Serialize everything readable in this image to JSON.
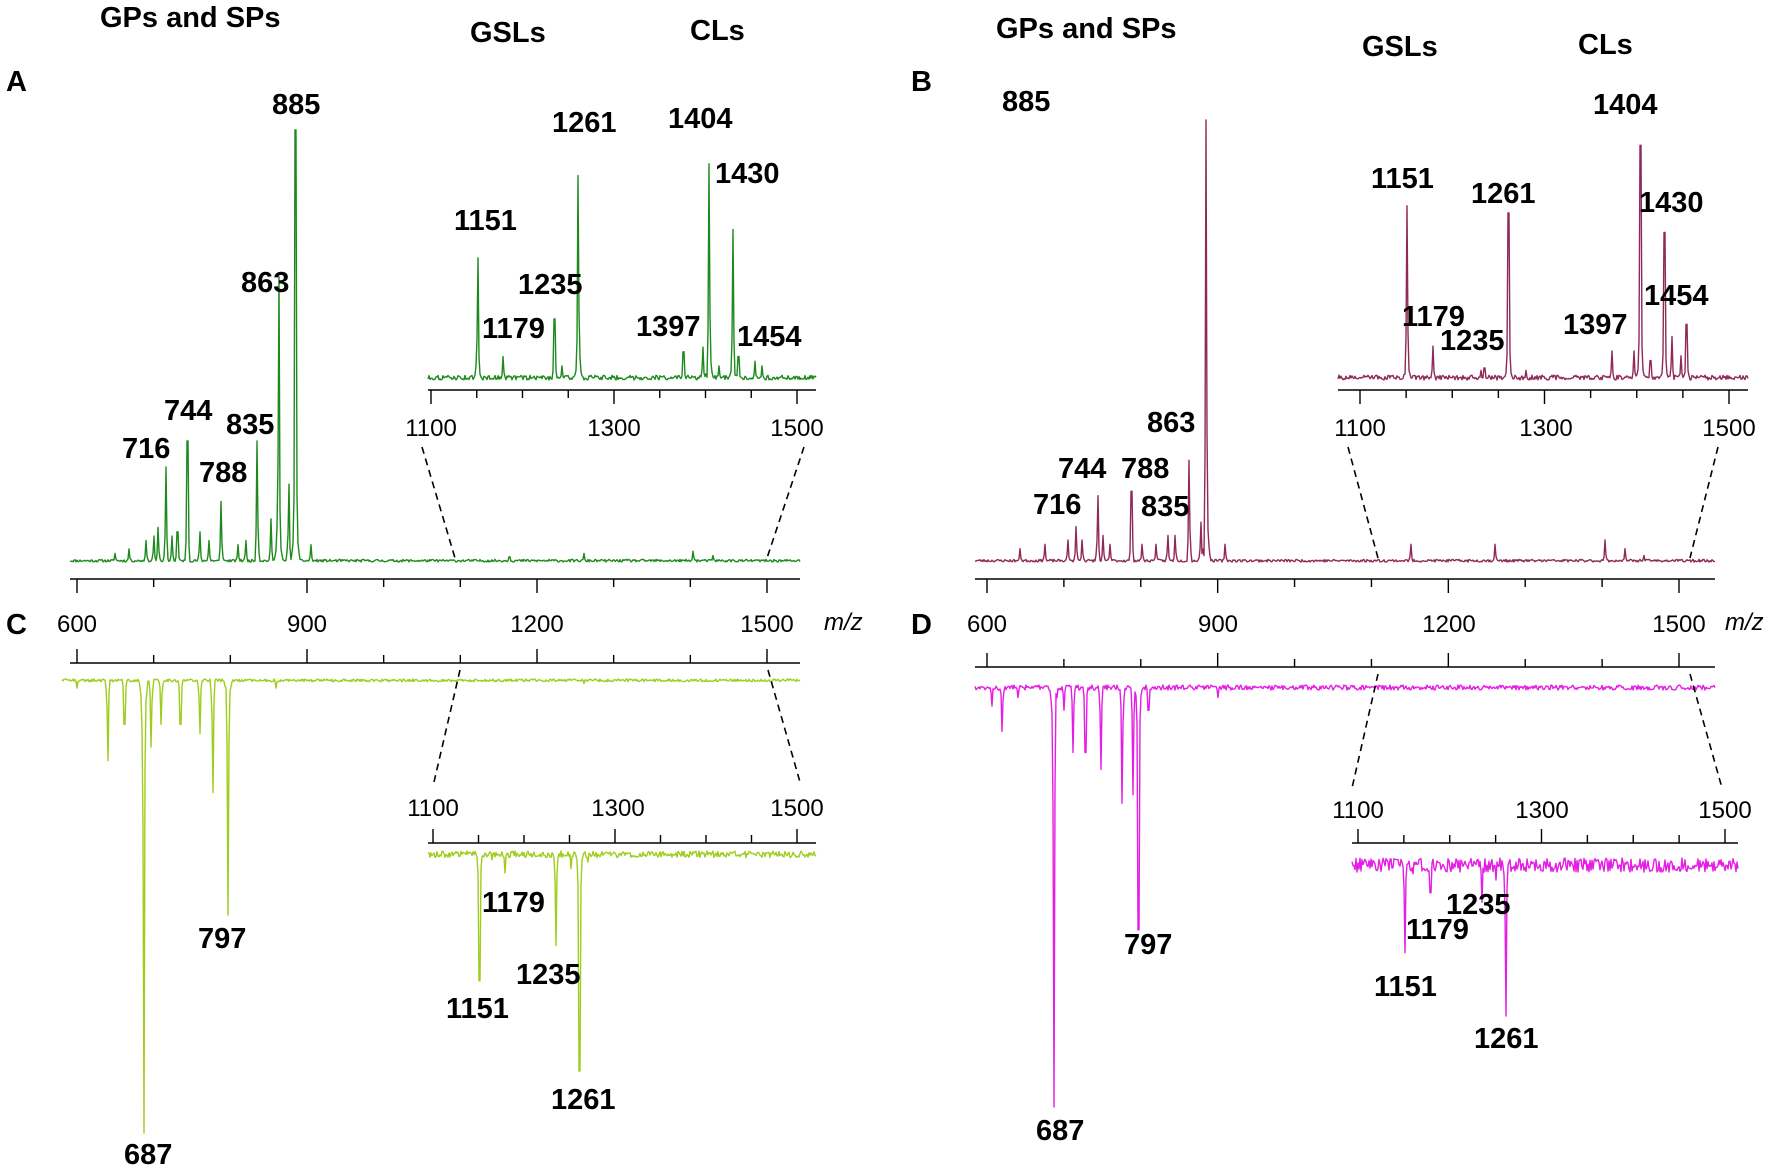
{
  "chart_data": [
    {
      "panel": "A",
      "type": "line",
      "mode": "positive",
      "color": "#1e8a1e",
      "region_labels": [
        "GPs and SPs",
        "GSLs",
        "CLs"
      ],
      "x_axis": {
        "label": "m/z",
        "ticks": [
          "600",
          "900",
          "1200",
          "1500"
        ],
        "range": [
          590,
          1545
        ]
      },
      "inset": {
        "ticks": [
          "1100",
          "1300",
          "1500"
        ],
        "range": [
          1090,
          1515
        ]
      },
      "peaks": [
        {
          "mz": 716,
          "label": "716",
          "height": 0.22
        },
        {
          "mz": 744,
          "label": "744",
          "height": 0.28
        },
        {
          "mz": 788,
          "label": "788",
          "height": 0.14
        },
        {
          "mz": 835,
          "label": "835",
          "height": 0.28
        },
        {
          "mz": 863,
          "label": "863",
          "height": 0.66
        },
        {
          "mz": 885,
          "label": "885",
          "height": 1.0
        }
      ],
      "inset_peaks": [
        {
          "mz": 1151,
          "label": "1151",
          "height": 0.52
        },
        {
          "mz": 1179,
          "label": "1179",
          "height": 0.1
        },
        {
          "mz": 1235,
          "label": "1235",
          "height": 0.26
        },
        {
          "mz": 1261,
          "label": "1261",
          "height": 0.87
        },
        {
          "mz": 1397,
          "label": "1397",
          "height": 0.14
        },
        {
          "mz": 1404,
          "label": "1404",
          "height": 0.92
        },
        {
          "mz": 1430,
          "label": "1430",
          "height": 0.64
        },
        {
          "mz": 1454,
          "label": "1454",
          "height": 0.08
        }
      ]
    },
    {
      "panel": "B",
      "type": "line",
      "mode": "positive",
      "color": "#8f2a58",
      "region_labels": [
        "GPs and SPs",
        "GSLs",
        "CLs"
      ],
      "x_axis": {
        "label": "m/z",
        "ticks": [
          "600",
          "900",
          "1200",
          "1500"
        ],
        "range": [
          590,
          1545
        ]
      },
      "inset": {
        "ticks": [
          "1100",
          "1300",
          "1500"
        ],
        "range": [
          1090,
          1520
        ]
      },
      "peaks": [
        {
          "mz": 716,
          "label": "716",
          "height": 0.08
        },
        {
          "mz": 744,
          "label": "744",
          "height": 0.15
        },
        {
          "mz": 788,
          "label": "788",
          "height": 0.16
        },
        {
          "mz": 835,
          "label": "835",
          "height": 0.06
        },
        {
          "mz": 863,
          "label": "863",
          "height": 0.23
        },
        {
          "mz": 885,
          "label": "885",
          "height": 1.0
        }
      ],
      "inset_peaks": [
        {
          "mz": 1151,
          "label": "1151",
          "height": 0.72
        },
        {
          "mz": 1179,
          "label": "1179",
          "height": 0.14
        },
        {
          "mz": 1235,
          "label": "1235",
          "height": 0.05
        },
        {
          "mz": 1261,
          "label": "1261",
          "height": 0.69
        },
        {
          "mz": 1397,
          "label": "1397",
          "height": 0.12
        },
        {
          "mz": 1404,
          "label": "1404",
          "height": 0.97
        },
        {
          "mz": 1430,
          "label": "1430",
          "height": 0.61
        },
        {
          "mz": 1454,
          "label": "1454",
          "height": 0.23
        }
      ]
    },
    {
      "panel": "C",
      "type": "line",
      "mode": "negative",
      "color": "#9fcd1e",
      "x_axis": {
        "ticks": [
          "600",
          "900",
          "1200",
          "1500"
        ],
        "range": [
          590,
          1545
        ]
      },
      "inset": {
        "ticks": [
          "1100",
          "1300",
          "1500"
        ],
        "range": [
          1090,
          1515
        ]
      },
      "peaks": [
        {
          "mz": 687,
          "label": "687",
          "height": 1.0
        },
        {
          "mz": 797,
          "label": "797",
          "height": 0.52
        }
      ],
      "inset_peaks": [
        {
          "mz": 1151,
          "label": "1151",
          "height": 0.59
        },
        {
          "mz": 1179,
          "label": "1179",
          "height": 0.1
        },
        {
          "mz": 1235,
          "label": "1235",
          "height": 0.43
        },
        {
          "mz": 1261,
          "label": "1261",
          "height": 1.0
        }
      ]
    },
    {
      "panel": "D",
      "type": "line",
      "mode": "negative",
      "color": "#e51ee5",
      "x_axis": {
        "label": "m/z",
        "ticks": [
          "600",
          "900",
          "1200",
          "1500"
        ],
        "range": [
          590,
          1545
        ]
      },
      "inset": {
        "ticks": [
          "1100",
          "1300",
          "1500"
        ],
        "range": [
          1090,
          1520
        ]
      },
      "peaks": [
        {
          "mz": 687,
          "label": "687",
          "height": 1.0
        },
        {
          "mz": 797,
          "label": "797",
          "height": 0.58
        }
      ],
      "inset_peaks": [
        {
          "mz": 1151,
          "label": "1151",
          "height": 0.6
        },
        {
          "mz": 1179,
          "label": "1179",
          "height": 0.22
        },
        {
          "mz": 1235,
          "label": "1235",
          "height": 0.28
        },
        {
          "mz": 1261,
          "label": "1261",
          "height": 1.0
        }
      ]
    }
  ]
}
